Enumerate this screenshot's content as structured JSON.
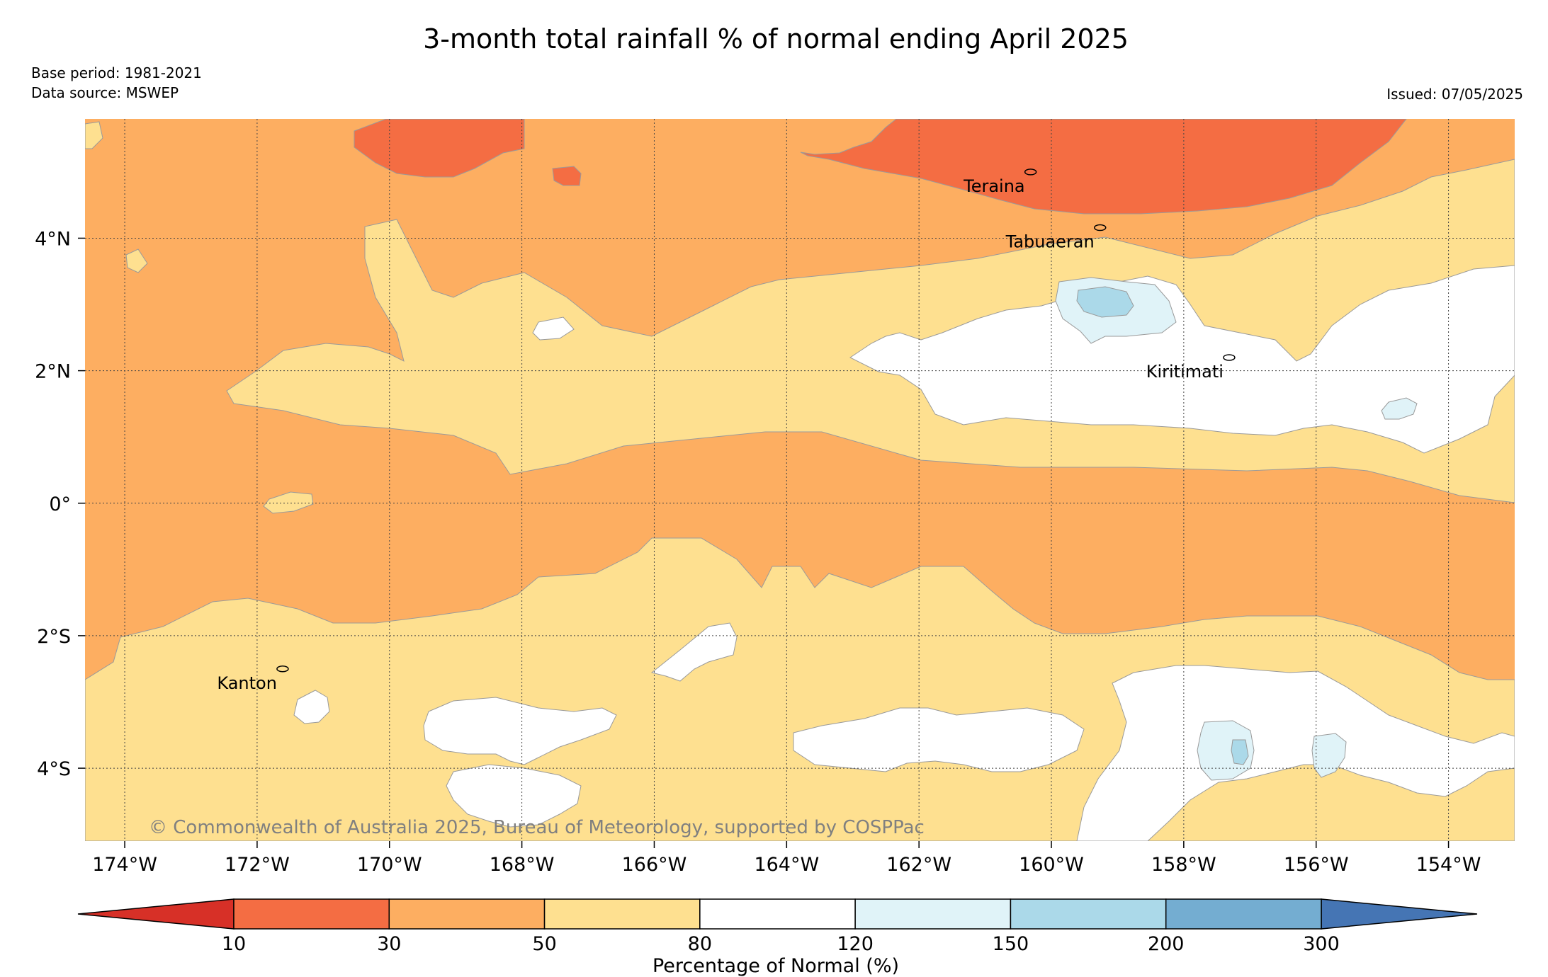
{
  "title": "3-month total rainfall % of normal ending April 2025",
  "meta": {
    "base_period": "Base period: 1981-2021",
    "data_source": "Data source: MSWEP",
    "issued": "Issued: 07/05/2025"
  },
  "map": {
    "lon_range": [
      -174.6,
      -153.0
    ],
    "lat_range": [
      -5.1,
      5.8
    ],
    "lon_ticks": [
      {
        "value": -174,
        "label": "174°W"
      },
      {
        "value": -172,
        "label": "172°W"
      },
      {
        "value": -170,
        "label": "170°W"
      },
      {
        "value": -168,
        "label": "168°W"
      },
      {
        "value": -166,
        "label": "166°W"
      },
      {
        "value": -164,
        "label": "164°W"
      },
      {
        "value": -162,
        "label": "162°W"
      },
      {
        "value": -160,
        "label": "160°W"
      },
      {
        "value": -158,
        "label": "158°W"
      },
      {
        "value": -156,
        "label": "156°W"
      },
      {
        "value": -154,
        "label": "154°W"
      }
    ],
    "lat_ticks": [
      {
        "value": 4,
        "label": "4°N"
      },
      {
        "value": 2,
        "label": "2°N"
      },
      {
        "value": 0,
        "label": "0°"
      },
      {
        "value": -2,
        "label": "2°S"
      },
      {
        "value": -4,
        "label": "4°S"
      }
    ],
    "gridlines": "dotted",
    "places": [
      {
        "name": "Teraina",
        "lon": -160.4,
        "lat": 4.7
      },
      {
        "name": "Tabuaeran",
        "lon": -159.35,
        "lat": 3.86
      },
      {
        "name": "Kiritimati",
        "lon": -157.4,
        "lat": 1.9
      },
      {
        "name": "Kanton",
        "lon": -171.7,
        "lat": -2.8
      }
    ],
    "copyright": "© Commonwealth of Australia 2025, Bureau of Meteorology, supported by COSPPac"
  },
  "colorbar": {
    "label": "Percentage of Normal (%)",
    "boundaries": [
      "10",
      "30",
      "50",
      "80",
      "120",
      "150",
      "200",
      "300"
    ],
    "under_color": "#d73027",
    "over_color": "#4575b4",
    "colors": [
      "#f46d43",
      "#fdae61",
      "#fee090",
      "#ffffff",
      "#e0f3f8",
      "#abd9e9",
      "#74add1"
    ]
  }
}
